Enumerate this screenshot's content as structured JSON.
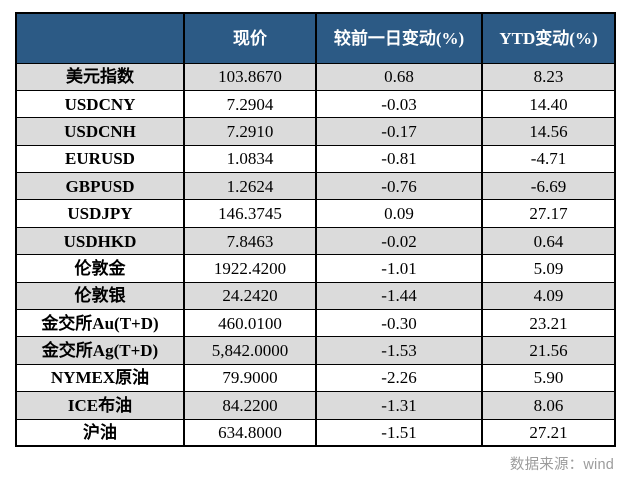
{
  "colors": {
    "header_bg": "#2C5A85",
    "row_alt_bg": "#DBDBDB",
    "row_plain_bg": "#FFFFFF",
    "negative_text": "#FF0000",
    "positive_text": "#000000",
    "border": "#000000",
    "source_text": "#9C9C9C"
  },
  "footer": {
    "source_label": "数据来源：wind"
  },
  "chart_data": {
    "type": "table",
    "title": "",
    "columns": [
      "",
      "现价",
      "较前一日变动(%)",
      "YTD变动(%)"
    ],
    "rows": [
      {
        "label": "美元指数",
        "price": "103.8670",
        "day_change": "0.68",
        "ytd_change": "8.23"
      },
      {
        "label": "USDCNY",
        "price": "7.2904",
        "day_change": "-0.03",
        "ytd_change": "14.40"
      },
      {
        "label": "USDCNH",
        "price": "7.2910",
        "day_change": "-0.17",
        "ytd_change": "14.56"
      },
      {
        "label": "EURUSD",
        "price": "1.0834",
        "day_change": "-0.81",
        "ytd_change": "-4.71"
      },
      {
        "label": "GBPUSD",
        "price": "1.2624",
        "day_change": "-0.76",
        "ytd_change": "-6.69"
      },
      {
        "label": "USDJPY",
        "price": "146.3745",
        "day_change": "0.09",
        "ytd_change": "27.17"
      },
      {
        "label": "USDHKD",
        "price": "7.8463",
        "day_change": "-0.02",
        "ytd_change": "0.64"
      },
      {
        "label": "伦敦金",
        "price": "1922.4200",
        "day_change": "-1.01",
        "ytd_change": "5.09"
      },
      {
        "label": "伦敦银",
        "price": "24.2420",
        "day_change": "-1.44",
        "ytd_change": "4.09"
      },
      {
        "label": "金交所Au(T+D)",
        "price": "460.0100",
        "day_change": "-0.30",
        "ytd_change": "23.21"
      },
      {
        "label": "金交所Ag(T+D)",
        "price": "5,842.0000",
        "day_change": "-1.53",
        "ytd_change": "21.56"
      },
      {
        "label": "NYMEX原油",
        "price": "79.9000",
        "day_change": "-2.26",
        "ytd_change": "5.90"
      },
      {
        "label": "ICE布油",
        "price": "84.2200",
        "day_change": "-1.31",
        "ytd_change": "8.06"
      },
      {
        "label": "沪油",
        "price": "634.8000",
        "day_change": "-1.51",
        "ytd_change": "27.21"
      }
    ]
  }
}
